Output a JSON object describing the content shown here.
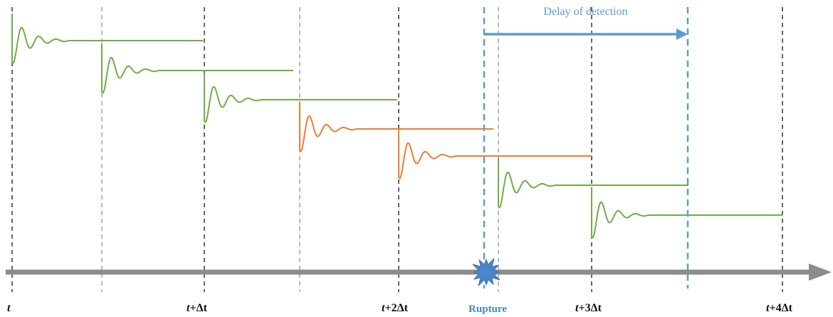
{
  "labels": {
    "delay": "Delay of detection",
    "rupture": "Rupture",
    "time_ticks": [
      {
        "var": "t",
        "rest": ""
      },
      {
        "var": "t",
        "rest": "+Δt"
      },
      {
        "var": "t",
        "rest": "+2Δt"
      },
      {
        "var": "t",
        "rest": "+3Δt"
      },
      {
        "var": "t",
        "rest": "+4Δt"
      }
    ]
  },
  "responses": [
    {
      "status": "normal"
    },
    {
      "status": "normal"
    },
    {
      "status": "normal"
    },
    {
      "status": "rupture"
    },
    {
      "status": "rupture"
    },
    {
      "status": "normal"
    },
    {
      "status": "normal"
    }
  ],
  "colors": {
    "normal": "#70ad47",
    "rupture": "#ed7d31",
    "detection": "#5b9bd5",
    "axis": "#8c8c8c",
    "major_grid": "#000000",
    "minor_grid": "#8c8c8c"
  }
}
